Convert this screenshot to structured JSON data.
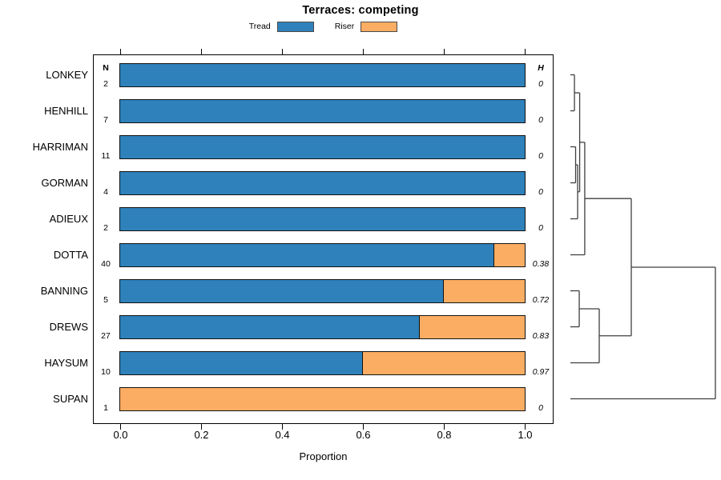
{
  "title": "Terraces: competing",
  "legend": {
    "items": [
      {
        "label": "Tread",
        "color": "#2E81BA"
      },
      {
        "label": "Riser",
        "color": "#FBAD63"
      }
    ]
  },
  "table": {
    "n_header": "N",
    "h_header": "H"
  },
  "x_axis": {
    "label": "Proportion",
    "tick_labels": [
      "0.0",
      "0.2",
      "0.4",
      "0.6",
      "0.8",
      "1.0"
    ]
  },
  "chart_data": {
    "type": "bar",
    "orientation": "horizontal",
    "stacked": true,
    "title": "Terraces: competing",
    "xlabel": "Proportion",
    "xlim": [
      0,
      1
    ],
    "x_ticks": [
      0,
      0.2,
      0.4,
      0.6,
      0.8,
      1.0
    ],
    "grid": false,
    "legend_position": "top-center",
    "categories": [
      "LONKEY",
      "HENHILL",
      "HARRIMAN",
      "GORMAN",
      "ADIEUX",
      "DOTTA",
      "BANNING",
      "DREWS",
      "HAYSUM",
      "SUPAN"
    ],
    "n_values": [
      2,
      7,
      11,
      4,
      2,
      40,
      5,
      27,
      10,
      1
    ],
    "h_values": [
      "0",
      "0",
      "0",
      "0",
      "0",
      "0.38",
      "0.72",
      "0.83",
      "0.97",
      "0"
    ],
    "series": [
      {
        "name": "Tread",
        "color": "#2E81BA",
        "values": [
          1,
          1,
          1,
          1,
          1,
          0.925,
          0.8,
          0.741,
          0.6,
          0
        ]
      },
      {
        "name": "Riser",
        "color": "#FBAD63",
        "values": [
          0,
          0,
          0,
          0,
          0,
          0.075,
          0.2,
          0.259,
          0.4,
          1
        ]
      }
    ],
    "dendrogram": {
      "leaves": [
        "LONKEY",
        "HENHILL",
        "HARRIMAN",
        "GORMAN",
        "ADIEUX",
        "DOTTA",
        "BANNING",
        "DREWS",
        "HAYSUM",
        "SUPAN"
      ],
      "merges": [
        {
          "id": "M0",
          "a": "LONKEY",
          "b": "HENHILL",
          "h": 0.028
        },
        {
          "id": "M1",
          "a": "HARRIMAN",
          "b": "GORMAN",
          "h": 0.036
        },
        {
          "id": "M2",
          "a": "M1",
          "b": "ADIEUX",
          "h": 0.05
        },
        {
          "id": "M3",
          "a": "M0",
          "b": "M2",
          "h": 0.064
        },
        {
          "id": "M4",
          "a": "M3",
          "b": "DOTTA",
          "h": 0.099
        },
        {
          "id": "M5",
          "a": "BANNING",
          "b": "DREWS",
          "h": 0.061
        },
        {
          "id": "M6",
          "a": "M5",
          "b": "HAYSUM",
          "h": 0.199
        },
        {
          "id": "M7",
          "a": "M4",
          "b": "M6",
          "h": 0.42
        },
        {
          "id": "M8",
          "a": "M7",
          "b": "SUPAN",
          "h": 1.0
        }
      ]
    }
  }
}
